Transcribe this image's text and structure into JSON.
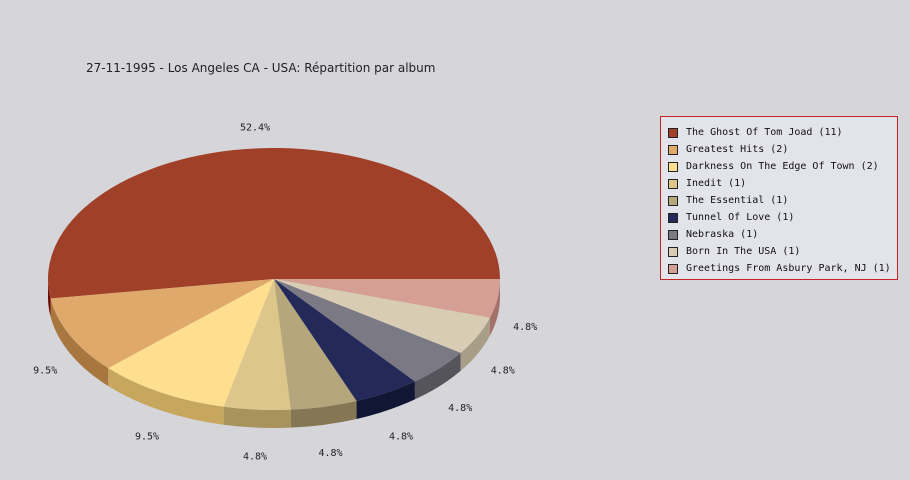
{
  "title": "27-11-1995 - Los Angeles CA - USA:  Répartition par album",
  "chart_data": {
    "type": "pie",
    "title": "27-11-1995 - Los Angeles CA - USA:  Répartition par album",
    "legend_position": "right",
    "slices": [
      {
        "label": "The Ghost Of Tom Joad (11)",
        "value": 11,
        "percent_label": "52.4%",
        "color": "#a04028",
        "side_color": "#6e0a06"
      },
      {
        "label": "Greatest Hits (2)",
        "value": 2,
        "percent_label": "9.5%",
        "color": "#dfa96c",
        "side_color": "#a8773f"
      },
      {
        "label": "Darkness On The Edge Of Town (2)",
        "value": 2,
        "percent_label": "9.5%",
        "color": "#fede8f",
        "side_color": "#c6a75d"
      },
      {
        "label": "Inedit (1)",
        "value": 1,
        "percent_label": "4.8%",
        "color": "#dcc68a",
        "side_color": "#a8935c"
      },
      {
        "label": "The Essential (1)",
        "value": 1,
        "percent_label": "4.8%",
        "color": "#b6a67c",
        "side_color": "#857754"
      },
      {
        "label": "Tunnel Of Love (1)",
        "value": 1,
        "percent_label": "4.8%",
        "color": "#232958",
        "side_color": "#111634"
      },
      {
        "label": "Nebraska (1)",
        "value": 1,
        "percent_label": "4.8%",
        "color": "#7b7a84",
        "side_color": "#55545c"
      },
      {
        "label": "Born In The USA (1)",
        "value": 1,
        "percent_label": "4.8%",
        "color": "#d8cdb4",
        "side_color": "#a89e88"
      },
      {
        "label": "Greetings From Asbury Park, NJ (1)",
        "value": 1,
        "percent_label": "4.8%",
        "color": "#d59f96",
        "side_color": "#a4716a"
      }
    ]
  }
}
